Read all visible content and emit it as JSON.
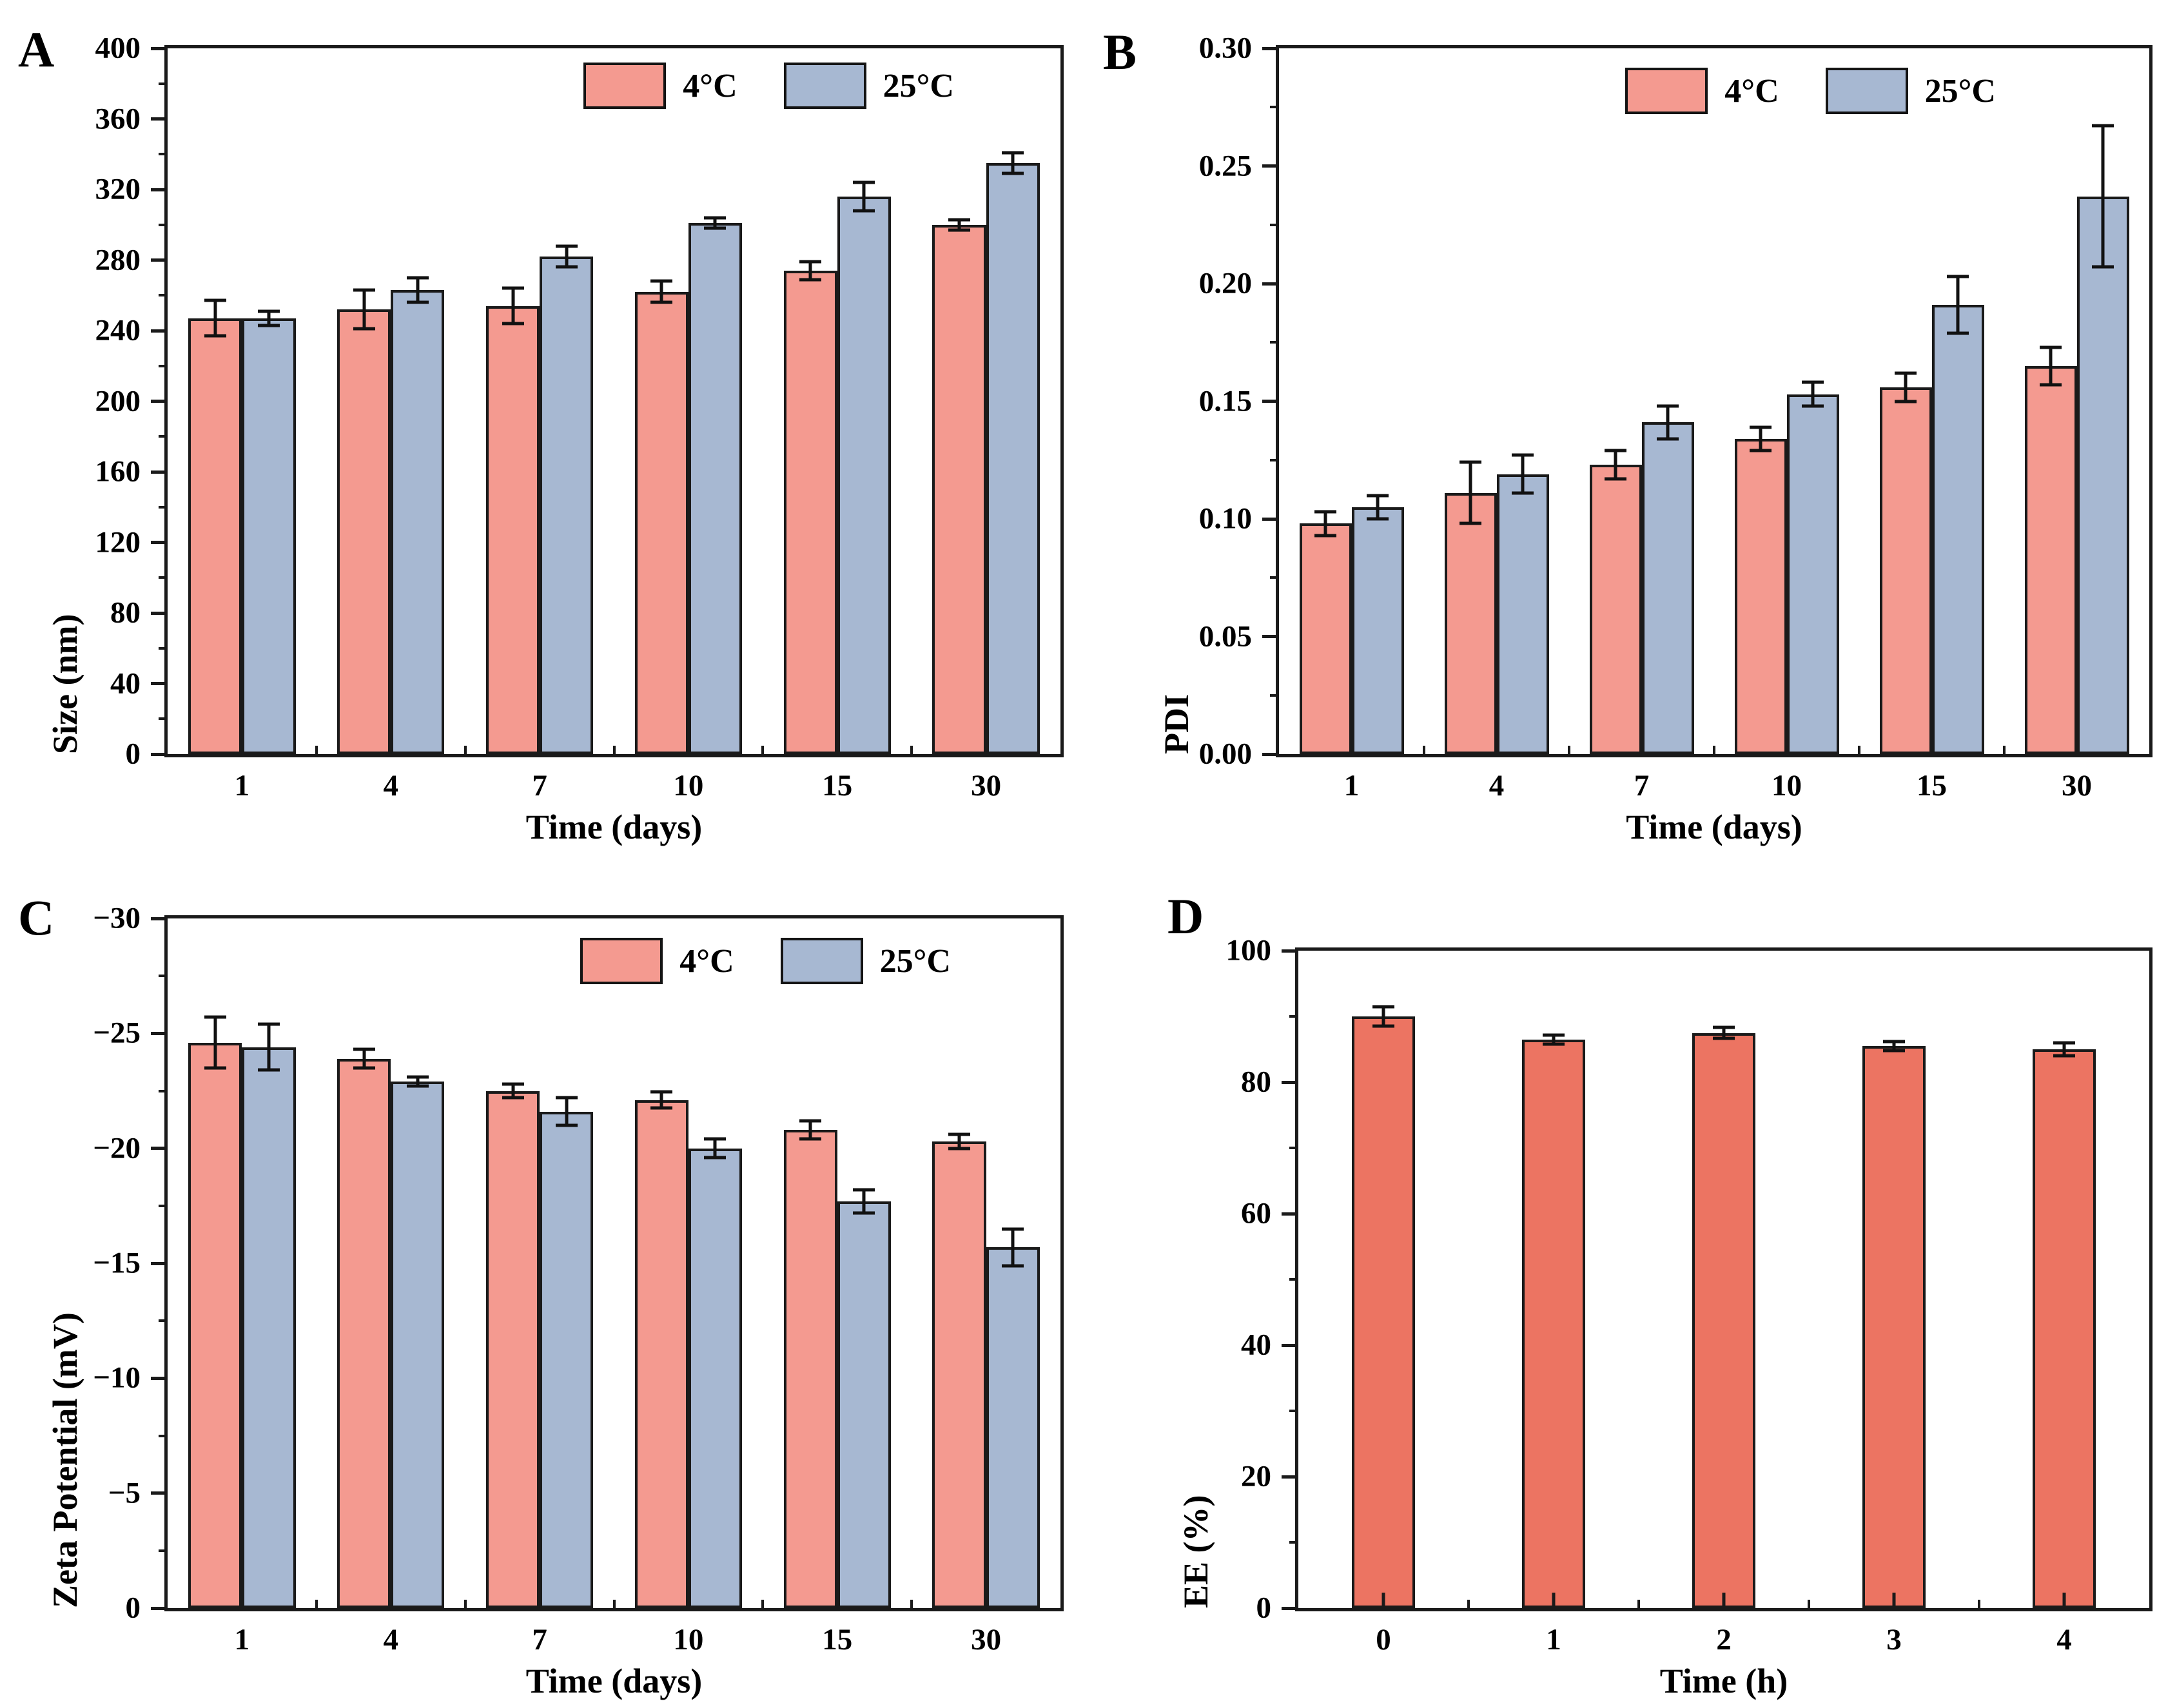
{
  "chart_data": [
    {
      "type": "bar",
      "panel": "A",
      "title": "",
      "xlabel": "Time (days)",
      "ylabel": "Size (nm)",
      "categories": [
        "1",
        "4",
        "7",
        "10",
        "15",
        "30"
      ],
      "series": [
        {
          "name": "4°C",
          "color": "#f49a90",
          "values": [
            247,
            252,
            254,
            262,
            274,
            300
          ],
          "errors": [
            10,
            11,
            10,
            6,
            5,
            3
          ]
        },
        {
          "name": "25°C",
          "color": "#a7b8d2",
          "values": [
            247,
            263,
            282,
            301,
            316,
            335
          ],
          "errors": [
            4,
            7,
            6,
            3,
            8,
            6
          ]
        }
      ],
      "ylim_bottom": 0,
      "ylim_top": 400,
      "yticks": [
        {
          "value": 0,
          "label": "0"
        },
        {
          "value": 40,
          "label": "40"
        },
        {
          "value": 80,
          "label": "80"
        },
        {
          "value": 120,
          "label": "120"
        },
        {
          "value": 160,
          "label": "160"
        },
        {
          "value": 200,
          "label": "200"
        },
        {
          "value": 240,
          "label": "240"
        },
        {
          "value": 280,
          "label": "280"
        },
        {
          "value": 320,
          "label": "320"
        },
        {
          "value": 360,
          "label": "360"
        },
        {
          "value": 400,
          "label": "400"
        }
      ],
      "legend_position": "top-right",
      "grid": false
    },
    {
      "type": "bar",
      "panel": "B",
      "title": "",
      "xlabel": "Time (days)",
      "ylabel": "PDI",
      "categories": [
        "1",
        "4",
        "7",
        "10",
        "15",
        "30"
      ],
      "series": [
        {
          "name": "4°C",
          "color": "#f49a90",
          "values": [
            0.098,
            0.111,
            0.123,
            0.134,
            0.156,
            0.165
          ],
          "errors": [
            0.005,
            0.013,
            0.006,
            0.005,
            0.006,
            0.008
          ]
        },
        {
          "name": "25°C",
          "color": "#a7b8d2",
          "values": [
            0.105,
            0.119,
            0.141,
            0.153,
            0.191,
            0.237
          ],
          "errors": [
            0.005,
            0.008,
            0.007,
            0.005,
            0.012,
            0.03
          ]
        }
      ],
      "ylim_bottom": 0,
      "ylim_top": 0.3,
      "yticks": [
        {
          "value": 0,
          "label": "0.00"
        },
        {
          "value": 0.05,
          "label": "0.05"
        },
        {
          "value": 0.1,
          "label": "0.10"
        },
        {
          "value": 0.15,
          "label": "0.15"
        },
        {
          "value": 0.2,
          "label": "0.20"
        },
        {
          "value": 0.25,
          "label": "0.25"
        },
        {
          "value": 0.3,
          "label": "0.30"
        }
      ],
      "legend_position": "top-right",
      "grid": false
    },
    {
      "type": "bar",
      "panel": "C",
      "title": "",
      "xlabel": "Time (days)",
      "ylabel": "Zeta Potential (mV)",
      "categories": [
        "1",
        "4",
        "7",
        "10",
        "15",
        "30"
      ],
      "series": [
        {
          "name": "4°C",
          "color": "#f49a90",
          "values": [
            -24.6,
            -23.9,
            -22.5,
            -22.1,
            -20.8,
            -20.3
          ],
          "errors": [
            1.1,
            0.4,
            0.3,
            0.35,
            0.4,
            0.3
          ]
        },
        {
          "name": "25°C",
          "color": "#a7b8d2",
          "values": [
            -24.4,
            -22.9,
            -21.6,
            -20.0,
            -17.7,
            -15.7
          ],
          "errors": [
            1.0,
            0.2,
            0.6,
            0.4,
            0.5,
            0.8
          ]
        }
      ],
      "ylim_bottom": 0,
      "ylim_top": -30,
      "yticks": [
        {
          "value": 0,
          "label": "0"
        },
        {
          "value": -5,
          "label": "−5"
        },
        {
          "value": -10,
          "label": "−10"
        },
        {
          "value": -15,
          "label": "−15"
        },
        {
          "value": -20,
          "label": "−20"
        },
        {
          "value": -25,
          "label": "−25"
        },
        {
          "value": -30,
          "label": "−30"
        }
      ],
      "legend_position": "top-right",
      "grid": false,
      "axis_note": "inverted y-axis: 0 at bottom, -30 at top"
    },
    {
      "type": "bar",
      "panel": "D",
      "title": "",
      "xlabel": "Time (h)",
      "ylabel": "EE (%)",
      "categories": [
        "0",
        "1",
        "2",
        "3",
        "4"
      ],
      "series": [
        {
          "name": "EE",
          "color": "#ec7462",
          "values": [
            90,
            86.5,
            87.5,
            85.5,
            85
          ],
          "errors": [
            1.5,
            0.7,
            0.8,
            0.7,
            1.0
          ]
        }
      ],
      "ylim_bottom": 0,
      "ylim_top": 100,
      "yticks": [
        {
          "value": 0,
          "label": "0"
        },
        {
          "value": 20,
          "label": "20"
        },
        {
          "value": 40,
          "label": "40"
        },
        {
          "value": 60,
          "label": "60"
        },
        {
          "value": 80,
          "label": "80"
        },
        {
          "value": 100,
          "label": "100"
        }
      ],
      "legend_position": "none",
      "grid": false
    }
  ]
}
